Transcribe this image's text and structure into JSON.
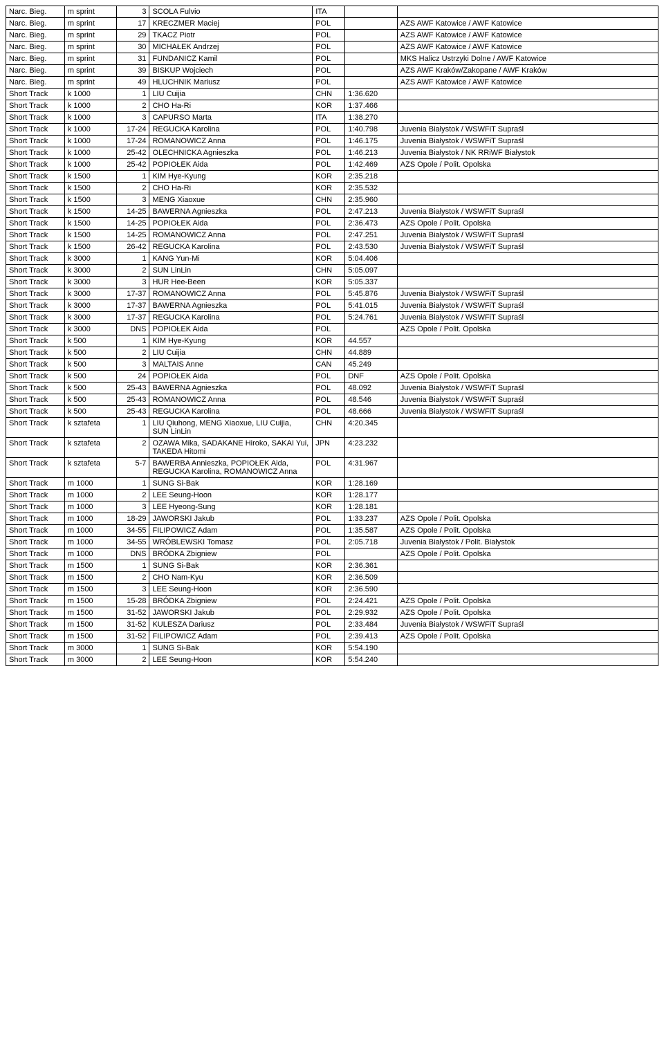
{
  "rows": [
    [
      "Narc. Bieg.",
      "m sprint",
      "3",
      "SCOLA Fulvio",
      "ITA",
      "",
      ""
    ],
    [
      "Narc. Bieg.",
      "m sprint",
      "17",
      "KRECZMER Maciej",
      "POL",
      "",
      "AZS AWF Katowice / AWF Katowice"
    ],
    [
      "Narc. Bieg.",
      "m sprint",
      "29",
      "TKACZ Piotr",
      "POL",
      "",
      "AZS AWF Katowice / AWF Katowice"
    ],
    [
      "Narc. Bieg.",
      "m sprint",
      "30",
      "MICHAŁEK Andrzej",
      "POL",
      "",
      "AZS AWF Katowice / AWF Katowice"
    ],
    [
      "Narc. Bieg.",
      "m sprint",
      "31",
      "FUNDANICZ Kamil",
      "POL",
      "",
      "MKS Halicz Ustrzyki Dolne / AWF Katowice"
    ],
    [
      "Narc. Bieg.",
      "m sprint",
      "39",
      "BISKUP Wojciech",
      "POL",
      "",
      "AZS AWF Kraków/Zakopane / AWF Kraków"
    ],
    [
      "Narc. Bieg.",
      "m sprint",
      "49",
      "HLUCHNIK Mariusz",
      "POL",
      "",
      "AZS AWF Katowice / AWF Katowice"
    ],
    [
      "Short Track",
      "k 1000",
      "1",
      "LIU Cuijia",
      "CHN",
      "1:36.620",
      ""
    ],
    [
      "Short Track",
      "k 1000",
      "2",
      "CHO Ha-Ri",
      "KOR",
      "1:37.466",
      ""
    ],
    [
      "Short Track",
      "k 1000",
      "3",
      "CAPURSO Marta",
      "ITA",
      "1:38.270",
      ""
    ],
    [
      "Short Track",
      "k 1000",
      "17-24",
      "REGUCKA Karolina",
      "POL",
      "1:40.798",
      "Juvenia Białystok / WSWFiT Supraśl"
    ],
    [
      "Short Track",
      "k 1000",
      "17-24",
      "ROMANOWICZ Anna",
      "POL",
      "1:46.175",
      "Juvenia Białystok / WSWFiT Supraśl"
    ],
    [
      "Short Track",
      "k 1000",
      "25-42",
      "OLECHNICKA Agnieszka",
      "POL",
      "1:46.213",
      "Juvenia Białystok / NK RRiWF Białystok"
    ],
    [
      "Short Track",
      "k 1000",
      "25-42",
      "POPIOŁEK Aida",
      "POL",
      "1:42.469",
      "AZS Opole / Polit. Opolska"
    ],
    [
      "Short Track",
      "k 1500",
      "1",
      "KIM Hye-Kyung",
      "KOR",
      "2:35.218",
      ""
    ],
    [
      "Short Track",
      "k 1500",
      "2",
      "CHO Ha-Ri",
      "KOR",
      "2:35.532",
      ""
    ],
    [
      "Short Track",
      "k 1500",
      "3",
      "MENG Xiaoxue",
      "CHN",
      "2:35.960",
      ""
    ],
    [
      "Short Track",
      "k 1500",
      "14-25",
      "BAWERNA Agnieszka",
      "POL",
      "2:47.213",
      "Juvenia Białystok / WSWFiT Supraśl"
    ],
    [
      "Short Track",
      "k 1500",
      "14-25",
      "POPIOŁEK Aida",
      "POL",
      "2:36.473",
      "AZS Opole / Polit. Opolska"
    ],
    [
      "Short Track",
      "k 1500",
      "14-25",
      "ROMANOWICZ Anna",
      "POL",
      "2:47.251",
      "Juvenia Białystok / WSWFiT Supraśl"
    ],
    [
      "Short Track",
      "k 1500",
      "26-42",
      "REGUCKA Karolina",
      "POL",
      "2:43.530",
      "Juvenia Białystok / WSWFiT Supraśl"
    ],
    [
      "Short Track",
      "k 3000",
      "1",
      "KANG Yun-Mi",
      "KOR",
      "5:04.406",
      ""
    ],
    [
      "Short Track",
      "k 3000",
      "2",
      "SUN LinLin",
      "CHN",
      "5:05.097",
      ""
    ],
    [
      "Short Track",
      "k 3000",
      "3",
      "HUR Hee-Been",
      "KOR",
      "5:05.337",
      ""
    ],
    [
      "Short Track",
      "k 3000",
      "17-37",
      "ROMANOWICZ Anna",
      "POL",
      "5:45.876",
      "Juvenia Białystok / WSWFiT Supraśl"
    ],
    [
      "Short Track",
      "k 3000",
      "17-37",
      "BAWERNA Agnieszka",
      "POL",
      "5:41.015",
      "Juvenia Białystok / WSWFiT Supraśl"
    ],
    [
      "Short Track",
      "k 3000",
      "17-37",
      "REGUCKA Karolina",
      "POL",
      "5:24.761",
      "Juvenia Białystok / WSWFiT Supraśl"
    ],
    [
      "Short Track",
      "k 3000",
      "DNS",
      "POPIOŁEK Aida",
      "POL",
      "",
      "AZS Opole / Polit. Opolska"
    ],
    [
      "Short Track",
      "k 500",
      "1",
      "KIM Hye-Kyung",
      "KOR",
      "44.557",
      ""
    ],
    [
      "Short Track",
      "k 500",
      "2",
      "LIU Cuijia",
      "CHN",
      "44.889",
      ""
    ],
    [
      "Short Track",
      "k 500",
      "3",
      "MALTAIS Anne",
      "CAN",
      "45.249",
      ""
    ],
    [
      "Short Track",
      "k 500",
      "24",
      "POPIOŁEK Aida",
      "POL",
      "DNF",
      "AZS Opole / Polit. Opolska"
    ],
    [
      "Short Track",
      "k 500",
      "25-43",
      "BAWERNA Agnieszka",
      "POL",
      "48.092",
      "Juvenia Białystok / WSWFiT Supraśl"
    ],
    [
      "Short Track",
      "k 500",
      "25-43",
      "ROMANOWICZ Anna",
      "POL",
      "48.546",
      "Juvenia Białystok / WSWFiT Supraśl"
    ],
    [
      "Short Track",
      "k 500",
      "25-43",
      "REGUCKA Karolina",
      "POL",
      "48.666",
      "Juvenia Białystok / WSWFiT Supraśl"
    ],
    [
      "Short Track",
      "k sztafeta",
      "1",
      "LIU Qiuhong, MENG Xiaoxue, LIU Cuijia, SUN LinLin",
      "CHN",
      "4:20.345",
      ""
    ],
    [
      "Short Track",
      "k sztafeta",
      "2",
      "OZAWA Mika, SADAKANE Hiroko, SAKAI Yui, TAKEDA Hitomi",
      "JPN",
      "4:23.232",
      ""
    ],
    [
      "Short Track",
      "k sztafeta",
      "5-7",
      "BAWERBA Annieszka, POPIOŁEK Aida, REGUCKA Karolina, ROMANOWICZ Anna",
      "POL",
      "4:31.967",
      ""
    ],
    [
      "Short Track",
      "m 1000",
      "1",
      "SUNG Si-Bak",
      "KOR",
      "1:28.169",
      ""
    ],
    [
      "Short Track",
      "m 1000",
      "2",
      "LEE Seung-Hoon",
      "KOR",
      "1:28.177",
      ""
    ],
    [
      "Short Track",
      "m 1000",
      "3",
      "LEE Hyeong-Sung",
      "KOR",
      "1:28.181",
      ""
    ],
    [
      "Short Track",
      "m 1000",
      "18-29",
      "JAWORSKI Jakub",
      "POL",
      "1:33.237",
      "AZS Opole / Polit. Opolska"
    ],
    [
      "Short Track",
      "m 1000",
      "34-55",
      "FILIPOWICZ Adam",
      "POL",
      "1:35.587",
      "AZS Opole / Polit. Opolska"
    ],
    [
      "Short Track",
      "m 1000",
      "34-55",
      "WRÓBLEWSKI Tomasz",
      "POL",
      "2:05.718",
      "Juvenia Białystok / Polit. Białystok"
    ],
    [
      "Short Track",
      "m 1000",
      "DNS",
      "BRÓDKA Zbigniew",
      "POL",
      "",
      "AZS Opole / Polit. Opolska"
    ],
    [
      "Short Track",
      "m 1500",
      "1",
      "SUNG Si-Bak",
      "KOR",
      "2:36.361",
      ""
    ],
    [
      "Short Track",
      "m 1500",
      "2",
      "CHO Nam-Kyu",
      "KOR",
      "2:36.509",
      ""
    ],
    [
      "Short Track",
      "m 1500",
      "3",
      "LEE Seung-Hoon",
      "KOR",
      "2:36.590",
      ""
    ],
    [
      "Short Track",
      "m 1500",
      "15-28",
      "BRÓDKA Zbigniew",
      "POL",
      "2:24.421",
      "AZS Opole / Polit. Opolska"
    ],
    [
      "Short Track",
      "m 1500",
      "31-52",
      "JAWORSKI Jakub",
      "POL",
      "2:29.932",
      "AZS Opole / Polit. Opolska"
    ],
    [
      "Short Track",
      "m 1500",
      "31-52",
      "KULESZA Dariusz",
      "POL",
      "2:33.484",
      "Juvenia Białystok / WSWFiT Supraśl"
    ],
    [
      "Short Track",
      "m 1500",
      "31-52",
      "FILIPOWICZ Adam",
      "POL",
      "2:39.413",
      "AZS Opole / Polit. Opolska"
    ],
    [
      "Short Track",
      "m 3000",
      "1",
      "SUNG Si-Bak",
      "KOR",
      "5:54.190",
      ""
    ],
    [
      "Short Track",
      "m 3000",
      "2",
      "LEE Seung-Hoon",
      "KOR",
      "5:54.240",
      ""
    ]
  ],
  "wrapRows": [
    4,
    5,
    35,
    36,
    37
  ]
}
